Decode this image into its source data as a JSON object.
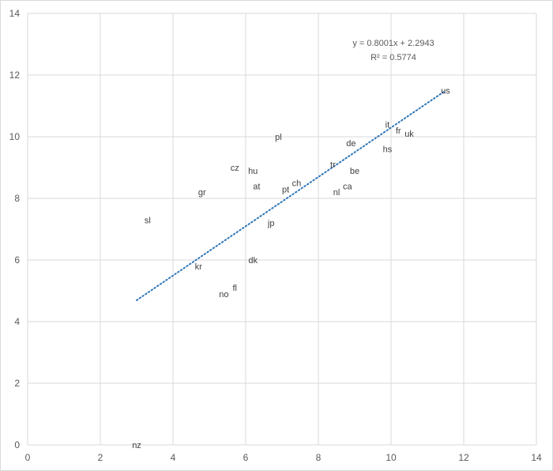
{
  "chart_data": {
    "type": "scatter",
    "title": "",
    "xlabel": "",
    "ylabel": "",
    "xlim": [
      0,
      14
    ],
    "ylim": [
      0,
      14
    ],
    "xticks": [
      0,
      2,
      4,
      6,
      8,
      10,
      12,
      14
    ],
    "yticks": [
      0,
      2,
      4,
      6,
      8,
      10,
      12,
      14
    ],
    "grid": true,
    "points": [
      {
        "label": "nz",
        "x": 3.0,
        "y": 0.0
      },
      {
        "label": "sl",
        "x": 3.3,
        "y": 7.3
      },
      {
        "label": "gr",
        "x": 4.8,
        "y": 8.2
      },
      {
        "label": "kr",
        "x": 4.7,
        "y": 5.8
      },
      {
        "label": "no",
        "x": 5.4,
        "y": 4.9
      },
      {
        "label": "fl",
        "x": 5.7,
        "y": 5.1
      },
      {
        "label": "cz",
        "x": 5.7,
        "y": 9.0
      },
      {
        "label": "hu",
        "x": 6.2,
        "y": 8.9
      },
      {
        "label": "at",
        "x": 6.3,
        "y": 8.4
      },
      {
        "label": "dk",
        "x": 6.2,
        "y": 6.0
      },
      {
        "label": "jp",
        "x": 6.7,
        "y": 7.2
      },
      {
        "label": "pl",
        "x": 6.9,
        "y": 10.0
      },
      {
        "label": "pt",
        "x": 7.1,
        "y": 8.3
      },
      {
        "label": "ch",
        "x": 7.4,
        "y": 8.5
      },
      {
        "label": "tr",
        "x": 8.4,
        "y": 9.1
      },
      {
        "label": "nl",
        "x": 8.5,
        "y": 8.2
      },
      {
        "label": "ca",
        "x": 8.8,
        "y": 8.4
      },
      {
        "label": "be",
        "x": 9.0,
        "y": 8.9
      },
      {
        "label": "de",
        "x": 8.9,
        "y": 9.8
      },
      {
        "label": "hs",
        "x": 9.9,
        "y": 9.6
      },
      {
        "label": "it",
        "x": 9.9,
        "y": 10.4
      },
      {
        "label": "fr",
        "x": 10.2,
        "y": 10.2
      },
      {
        "label": "uk",
        "x": 10.5,
        "y": 10.1
      },
      {
        "label": "us",
        "x": 11.5,
        "y": 11.5
      }
    ],
    "trendline": {
      "type": "linear",
      "slope": 0.8001,
      "intercept": 2.2943,
      "x_range": [
        3.0,
        11.5
      ],
      "equation": "y = 0.8001x + 2.2943",
      "r_squared": "R² = 0.5774",
      "color": "#2e75b6"
    },
    "colors": {
      "grid": "#d9d9d9",
      "text": "#595959",
      "point_text": "#404040"
    }
  }
}
